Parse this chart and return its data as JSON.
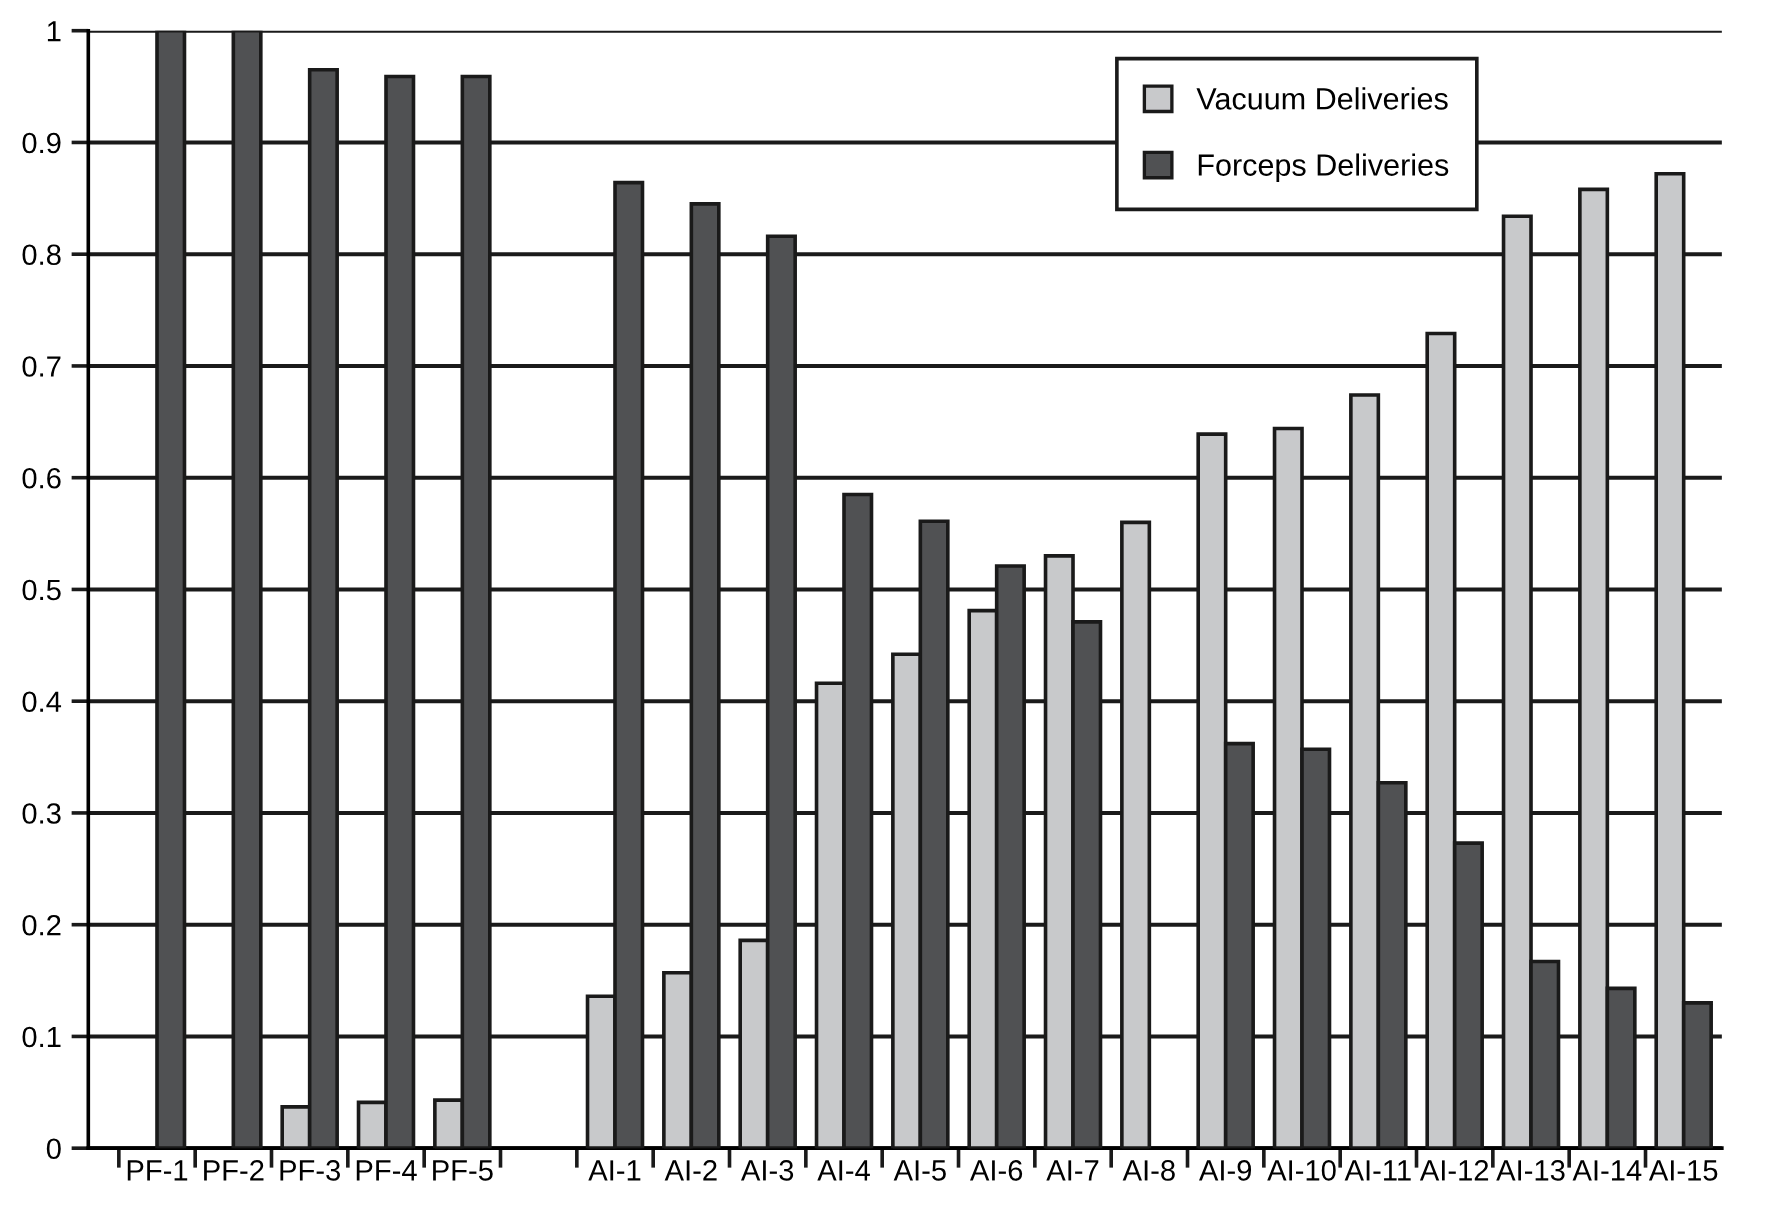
{
  "chart_data": {
    "type": "bar",
    "categories": [
      "PF-1",
      "PF-2",
      "PF-3",
      "PF-4",
      "PF-5",
      null,
      "AI-1",
      "AI-2",
      "AI-3",
      "AI-4",
      "AI-5",
      "AI-6",
      "AI-7",
      "AI-8",
      "AI-9",
      "AI-10",
      "AI-11",
      "AI-12",
      "AI-13",
      "AI-14",
      "AI-15"
    ],
    "series": [
      {
        "name": "Vacuum Deliveries",
        "color": "#c8c9cb",
        "values": [
          null,
          null,
          0.037,
          0.041,
          0.043,
          null,
          0.136,
          0.157,
          0.186,
          0.416,
          0.442,
          0.481,
          0.53,
          0.56,
          0.639,
          0.644,
          0.674,
          0.729,
          0.834,
          0.858,
          0.872
        ]
      },
      {
        "name": "Forceps Deliveries",
        "color": "#505153",
        "values": [
          1.0,
          1.0,
          0.965,
          0.959,
          0.959,
          null,
          0.864,
          0.845,
          0.816,
          0.585,
          0.561,
          0.521,
          0.471,
          null,
          0.362,
          0.357,
          0.327,
          0.273,
          0.167,
          0.143,
          0.13
        ]
      }
    ],
    "ylim": [
      0,
      1
    ],
    "yticks": [
      0,
      0.1,
      0.2,
      0.3,
      0.4,
      0.5,
      0.6,
      0.7,
      0.8,
      0.9,
      1
    ],
    "grid": "y",
    "legend": "top right"
  }
}
